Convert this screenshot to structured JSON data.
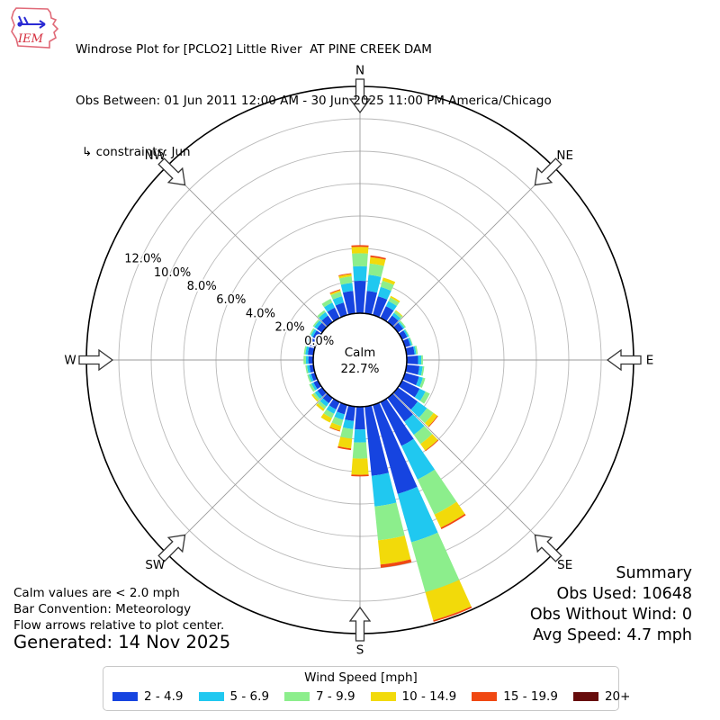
{
  "header": {
    "logo_text": "IEM",
    "title": "Windrose Plot for [PCLO2] Little River  AT PINE CREEK DAM",
    "subtitle": "Obs Between: 01 Jun 2011 12:00 AM - 30 Jun 2025 11:00 PM America/Chicago",
    "constraints": "↳ constraints: Jun"
  },
  "chart_data": {
    "type": "windrose",
    "units_label": "Wind Speed [mph]",
    "direction_bin_deg": 10,
    "directions_deg": [
      0,
      10,
      20,
      30,
      40,
      50,
      60,
      70,
      80,
      90,
      100,
      110,
      120,
      130,
      140,
      150,
      160,
      170,
      180,
      190,
      200,
      210,
      220,
      230,
      240,
      250,
      260,
      270,
      280,
      290,
      300,
      310,
      320,
      330,
      340,
      350
    ],
    "speed_bins": [
      {
        "label": "2 - 4.9",
        "color": "#1644e0",
        "values_pct": [
          2.0,
          1.4,
          1.2,
          0.8,
          0.5,
          0.4,
          0.35,
          0.35,
          0.5,
          0.7,
          0.8,
          0.9,
          1.2,
          1.5,
          1.8,
          3.0,
          5.7,
          4.3,
          1.4,
          0.9,
          0.6,
          0.5,
          0.4,
          0.35,
          0.3,
          0.25,
          0.25,
          0.3,
          0.35,
          0.4,
          0.35,
          0.4,
          0.5,
          0.7,
          0.8,
          1.4
        ]
      },
      {
        "label": "5 - 6.9",
        "color": "#20c8f0",
        "values_pct": [
          0.9,
          1.0,
          0.6,
          0.35,
          0.2,
          0.1,
          0.1,
          0.1,
          0.1,
          0.2,
          0.2,
          0.25,
          0.4,
          0.7,
          1.0,
          2.3,
          3.1,
          1.9,
          0.8,
          0.5,
          0.35,
          0.3,
          0.25,
          0.2,
          0.15,
          0.15,
          0.15,
          0.15,
          0.15,
          0.2,
          0.15,
          0.2,
          0.25,
          0.35,
          0.4,
          0.5
        ]
      },
      {
        "label": "7 - 9.9",
        "color": "#8cee8c",
        "values_pct": [
          0.8,
          0.7,
          0.4,
          0.25,
          0.15,
          0.1,
          0.05,
          0.05,
          0.1,
          0.1,
          0.1,
          0.15,
          0.3,
          0.5,
          0.7,
          2.4,
          3.2,
          2.1,
          1.0,
          0.6,
          0.4,
          0.3,
          0.2,
          0.15,
          0.15,
          0.1,
          0.1,
          0.15,
          0.1,
          0.1,
          0.1,
          0.1,
          0.15,
          0.25,
          0.3,
          0.4
        ]
      },
      {
        "label": "10 - 14.9",
        "color": "#f2da0a",
        "values_pct": [
          0.4,
          0.4,
          0.2,
          0.1,
          0.05,
          0,
          0,
          0,
          0,
          0,
          0,
          0,
          0,
          0.3,
          0.5,
          0.9,
          1.8,
          1.5,
          1.0,
          0.6,
          0.3,
          0.3,
          0.15,
          0.1,
          0,
          0,
          0,
          0,
          0,
          0,
          0,
          0,
          0,
          0,
          0.1,
          0.15
        ]
      },
      {
        "label": "15 - 19.9",
        "color": "#f04812",
        "values_pct": [
          0.1,
          0.1,
          0,
          0,
          0,
          0,
          0,
          0,
          0,
          0,
          0,
          0,
          0,
          0.05,
          0.05,
          0.1,
          0.1,
          0.2,
          0.1,
          0.1,
          0.05,
          0,
          0,
          0,
          0,
          0,
          0,
          0,
          0,
          0,
          0,
          0,
          0,
          0,
          0.05,
          0.05
        ]
      },
      {
        "label": "20+",
        "color": "#670c0c",
        "values_pct": [
          0,
          0,
          0,
          0,
          0,
          0,
          0,
          0,
          0,
          0,
          0,
          0,
          0,
          0,
          0,
          0,
          0,
          0,
          0,
          0,
          0,
          0,
          0,
          0,
          0,
          0,
          0,
          0,
          0,
          0,
          0,
          0,
          0,
          0,
          0,
          0
        ]
      }
    ],
    "radial_ticks_pct": [
      0,
      2,
      4,
      6,
      8,
      10,
      12
    ],
    "radial_max_pct": 14,
    "compass_labels": [
      "N",
      "NE",
      "E",
      "SE",
      "S",
      "SW",
      "W",
      "NW"
    ],
    "calm": {
      "label": "Calm",
      "pct_label": "22.7%"
    }
  },
  "legend": {
    "title": "Wind Speed [mph]"
  },
  "summary": {
    "title": "Summary",
    "lines": [
      "Obs Used: 10648",
      "Obs Without Wind: 0",
      "Avg Speed: 4.7 mph"
    ]
  },
  "notes": {
    "lines": [
      "Calm values are < 2.0 mph",
      "Bar Convention: Meteorology",
      "Flow arrows relative to plot center."
    ],
    "generated": "Generated: 14 Nov 2025"
  }
}
